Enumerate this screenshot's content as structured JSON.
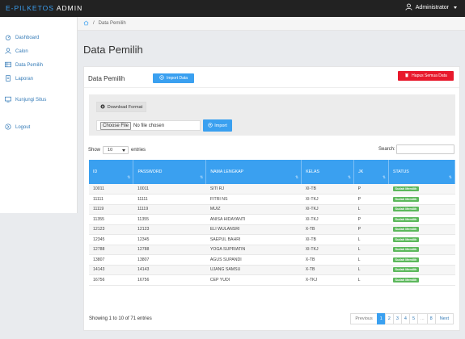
{
  "topbar": {
    "brand_prefix": "E-PILKETOS",
    "brand_suffix": " ADMIN",
    "user_label": "Administrator"
  },
  "sidebar": {
    "items": [
      {
        "label": "Dashboard",
        "icon": "dashboard-icon"
      },
      {
        "label": "Calon",
        "icon": "user-icon"
      },
      {
        "label": "Data Pemilih",
        "icon": "table-icon"
      },
      {
        "label": "Laporan",
        "icon": "document-icon"
      },
      {
        "label": "Kunjungi Situs",
        "icon": "monitor-icon"
      },
      {
        "label": "Logout",
        "icon": "logout-icon"
      }
    ]
  },
  "breadcrumb": {
    "current": "Data Pemilih"
  },
  "page": {
    "title": "Data Pemilih"
  },
  "panel": {
    "title": "Data Pemilih",
    "import_data_label": "Import Data",
    "delete_all_label": "Hapus Semua Data"
  },
  "import_box": {
    "download_label": "Download Format",
    "choose_file_label": "Choose File",
    "no_file_label": "No file chosen",
    "import_label": "Import"
  },
  "table_controls": {
    "show_label": "Show",
    "entries_value": "10",
    "entries_label": "entries",
    "search_label": "Search:",
    "search_value": ""
  },
  "table": {
    "columns": [
      "ID",
      "PASSWORD",
      "NAMA LENGKAP",
      "KELAS",
      "JK",
      "STATUS"
    ],
    "rows": [
      {
        "id": "10011",
        "password": "10011",
        "nama": "SITI RJ",
        "kelas": "XI-TB",
        "jk": "P",
        "status": "Sudah Memilih"
      },
      {
        "id": "11111",
        "password": "11111",
        "nama": "FITRI NS",
        "kelas": "XI-TKJ",
        "jk": "P",
        "status": "Sudah Memilih"
      },
      {
        "id": "11119",
        "password": "11119",
        "nama": "MUIZ",
        "kelas": "XI-TKJ",
        "jk": "L",
        "status": "Sudah Memilih"
      },
      {
        "id": "11355",
        "password": "11355",
        "nama": "ANISA HIDAYANTI",
        "kelas": "XI-TKJ",
        "jk": "P",
        "status": "Sudah Memilih"
      },
      {
        "id": "12123",
        "password": "12123",
        "nama": "ELI WULANSRI",
        "kelas": "X-TB",
        "jk": "P",
        "status": "Sudah Memilih"
      },
      {
        "id": "12345",
        "password": "12345",
        "nama": "SAEPUL BAHRI",
        "kelas": "XI-TB",
        "jk": "L",
        "status": "Sudah Memilih"
      },
      {
        "id": "12788",
        "password": "12788",
        "nama": "YOGA SUPRIATIN",
        "kelas": "XI-TKJ",
        "jk": "L",
        "status": "Sudah Memilih"
      },
      {
        "id": "13807",
        "password": "13807",
        "nama": "AGUS SUPANDI",
        "kelas": "X-TB",
        "jk": "L",
        "status": "Sudah Memilih"
      },
      {
        "id": "14143",
        "password": "14143",
        "nama": "UJANG SAMSU",
        "kelas": "X-TB",
        "jk": "L",
        "status": "Sudah Memilih"
      },
      {
        "id": "16756",
        "password": "16756",
        "nama": "CEP YUDI",
        "kelas": "X-TKJ",
        "jk": "L",
        "status": "Sudah Memilih"
      }
    ]
  },
  "footer": {
    "info": "Showing 1 to 10 of 71 entries",
    "pages": [
      "Previous",
      "1",
      "2",
      "3",
      "4",
      "5",
      "...",
      "8",
      "Next"
    ],
    "active_page": "1"
  },
  "colors": {
    "accent": "#3aa0f0",
    "danger": "#e8192c",
    "success": "#5cb85c",
    "topbar": "#222222"
  }
}
